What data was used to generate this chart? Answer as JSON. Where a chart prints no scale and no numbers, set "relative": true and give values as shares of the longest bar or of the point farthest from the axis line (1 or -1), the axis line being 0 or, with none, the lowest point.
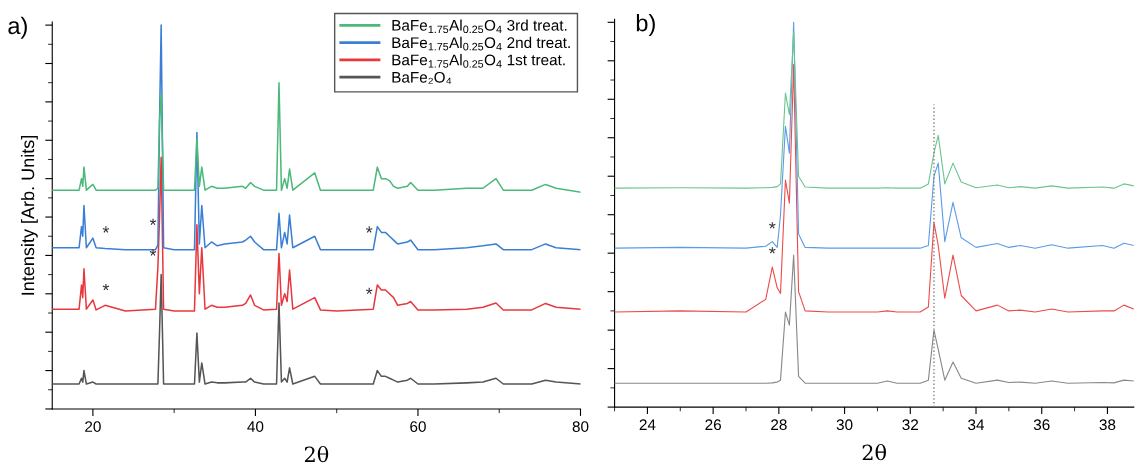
{
  "chart_data": [
    {
      "type": "line",
      "title": "a)",
      "xlabel": "2θ",
      "ylabel": "Intensity [Arb. Units]",
      "relative": true,
      "tick_labels": "x",
      "legend": "top right",
      "grid": false,
      "marker": "none",
      "line_style": "solid",
      "xlim": [
        15,
        80
      ],
      "xticks": [
        20,
        40,
        60,
        80
      ],
      "x": [
        15,
        18.3,
        18.6,
        18.75,
        18.9,
        19.2,
        20.0,
        20.4,
        21.5,
        24,
        27.7,
        28.0,
        28.2,
        28.4,
        28.7,
        30,
        32.5,
        32.8,
        33.1,
        33.4,
        33.8,
        34.6,
        35.3,
        36.2,
        38.4,
        38.8,
        39.4,
        39.9,
        41,
        42.6,
        42.9,
        43.2,
        43.6,
        43.9,
        44.2,
        44.6,
        47.3,
        48,
        50,
        54.5,
        55,
        55.5,
        56,
        56.5,
        57,
        57.5,
        58.7,
        59.1,
        60,
        62,
        66,
        68,
        69.6,
        70.5,
        74,
        75.7,
        77,
        80
      ],
      "series": [
        {
          "name": "BaFe$_{1.75}$Al$_{0.25}$O$_{4}$ 3rd treat.",
          "color": "#4cb87a",
          "values": [
            0.57,
            0.57,
            0.6,
            0.58,
            0.63,
            0.57,
            0.585,
            0.57,
            0.57,
            0.57,
            0.57,
            0.575,
            0.75,
            0.82,
            0.57,
            0.57,
            0.57,
            0.705,
            0.58,
            0.63,
            0.57,
            0.58,
            0.575,
            0.575,
            0.58,
            0.575,
            0.59,
            0.58,
            0.57,
            0.57,
            0.85,
            0.57,
            0.6,
            0.575,
            0.625,
            0.57,
            0.615,
            0.57,
            0.57,
            0.57,
            0.63,
            0.6,
            0.6,
            0.595,
            0.58,
            0.575,
            0.58,
            0.59,
            0.57,
            0.57,
            0.575,
            0.575,
            0.6,
            0.57,
            0.57,
            0.585,
            0.575,
            0.565
          ]
        },
        {
          "name": "BaFe$_{1.75}$Al$_{0.25}$O$_{4}$ 2nd treat.",
          "color": "#3a7fd5",
          "values": [
            0.42,
            0.42,
            0.475,
            0.45,
            0.53,
            0.42,
            0.445,
            0.42,
            0.418,
            0.415,
            0.415,
            0.427,
            0.75,
            1.0,
            0.42,
            0.415,
            0.415,
            0.72,
            0.43,
            0.53,
            0.42,
            0.435,
            0.425,
            0.43,
            0.435,
            0.44,
            0.45,
            0.435,
            0.415,
            0.415,
            0.51,
            0.42,
            0.46,
            0.43,
            0.505,
            0.42,
            0.45,
            0.415,
            0.415,
            0.415,
            0.475,
            0.46,
            0.46,
            0.45,
            0.44,
            0.43,
            0.435,
            0.44,
            0.415,
            0.415,
            0.42,
            0.425,
            0.43,
            0.415,
            0.415,
            0.43,
            0.42,
            0.415
          ]
        },
        {
          "name": "BaFe$_{1.75}$Al$_{0.25}$O$_{4}$ 1st treat.",
          "color": "#e8383d",
          "values": [
            0.26,
            0.26,
            0.323,
            0.29,
            0.365,
            0.26,
            0.284,
            0.258,
            0.27,
            0.255,
            0.26,
            0.37,
            0.5,
            0.656,
            0.26,
            0.255,
            0.255,
            0.48,
            0.3,
            0.42,
            0.26,
            0.27,
            0.265,
            0.265,
            0.27,
            0.275,
            0.297,
            0.27,
            0.258,
            0.26,
            0.405,
            0.27,
            0.3,
            0.28,
            0.362,
            0.26,
            0.29,
            0.258,
            0.255,
            0.26,
            0.323,
            0.31,
            0.31,
            0.3,
            0.29,
            0.27,
            0.275,
            0.28,
            0.258,
            0.258,
            0.26,
            0.265,
            0.276,
            0.258,
            0.258,
            0.275,
            0.265,
            0.26
          ]
        },
        {
          "name": "BaFe₂O₄",
          "color": "#555555",
          "values": [
            0.065,
            0.065,
            0.08,
            0.07,
            0.1,
            0.065,
            0.07,
            0.065,
            0.065,
            0.065,
            0.065,
            0.065,
            0.2,
            0.35,
            0.065,
            0.065,
            0.065,
            0.198,
            0.07,
            0.12,
            0.065,
            0.07,
            0.068,
            0.068,
            0.07,
            0.07,
            0.08,
            0.07,
            0.065,
            0.065,
            0.276,
            0.07,
            0.08,
            0.07,
            0.107,
            0.065,
            0.085,
            0.065,
            0.065,
            0.065,
            0.1,
            0.085,
            0.085,
            0.08,
            0.075,
            0.07,
            0.075,
            0.08,
            0.065,
            0.065,
            0.068,
            0.07,
            0.08,
            0.065,
            0.065,
            0.075,
            0.07,
            0.065
          ]
        }
      ],
      "annotations": [
        {
          "text": "*",
          "x": 21.6,
          "y": 0.43
        },
        {
          "text": "*",
          "x": 27.4,
          "y": 0.45
        },
        {
          "text": "*",
          "x": 54.0,
          "y": 0.43
        },
        {
          "text": "*",
          "x": 21.6,
          "y": 0.28
        },
        {
          "text": "*",
          "x": 27.4,
          "y": 0.37
        },
        {
          "text": "*",
          "x": 54.0,
          "y": 0.27
        }
      ]
    },
    {
      "type": "line",
      "title": "b)",
      "xlabel": "2θ",
      "relative": true,
      "tick_labels": "x",
      "grid": false,
      "marker": "none",
      "line_style": "solid",
      "xlim": [
        23,
        38.8
      ],
      "xticks": [
        24,
        26,
        28,
        30,
        32,
        34,
        36,
        38
      ],
      "x": [
        23,
        25,
        27,
        27.6,
        27.8,
        27.95,
        28.05,
        28.2,
        28.32,
        28.45,
        28.6,
        28.8,
        29.5,
        31,
        31.3,
        31.6,
        32.3,
        32.55,
        32.72,
        32.85,
        33.05,
        33.3,
        33.55,
        34,
        34.65,
        35,
        35.35,
        35.8,
        36.3,
        36.8,
        37.85,
        38.2,
        38.5,
        38.8
      ],
      "series": [
        {
          "color": "#6cc48e",
          "values": [
            0.569,
            0.57,
            0.569,
            0.57,
            0.571,
            0.573,
            0.58,
            0.816,
            0.76,
            0.974,
            0.6,
            0.572,
            0.569,
            0.569,
            0.57,
            0.569,
            0.569,
            0.58,
            0.66,
            0.706,
            0.58,
            0.634,
            0.585,
            0.57,
            0.577,
            0.57,
            0.573,
            0.569,
            0.575,
            0.569,
            0.572,
            0.569,
            0.58,
            0.575
          ]
        },
        {
          "color": "#5b9be8",
          "values": [
            0.413,
            0.415,
            0.413,
            0.418,
            0.43,
            0.415,
            0.5,
            0.73,
            0.66,
            1.0,
            0.45,
            0.415,
            0.413,
            0.413,
            0.413,
            0.413,
            0.413,
            0.42,
            0.6,
            0.634,
            0.43,
            0.532,
            0.44,
            0.415,
            0.425,
            0.415,
            0.42,
            0.413,
            0.422,
            0.413,
            0.42,
            0.413,
            0.426,
            0.42
          ]
        },
        {
          "color": "#ec4b4b",
          "values": [
            0.247,
            0.25,
            0.247,
            0.28,
            0.364,
            0.31,
            0.295,
            0.59,
            0.53,
            0.89,
            0.3,
            0.25,
            0.247,
            0.247,
            0.25,
            0.247,
            0.247,
            0.26,
            0.48,
            0.42,
            0.283,
            0.395,
            0.29,
            0.25,
            0.265,
            0.25,
            0.252,
            0.247,
            0.255,
            0.247,
            0.25,
            0.25,
            0.265,
            0.255
          ]
        },
        {
          "color": "#888888",
          "values": [
            0.062,
            0.062,
            0.062,
            0.062,
            0.063,
            0.065,
            0.07,
            0.247,
            0.213,
            0.395,
            0.08,
            0.062,
            0.062,
            0.062,
            0.068,
            0.062,
            0.062,
            0.07,
            0.2,
            0.15,
            0.07,
            0.117,
            0.075,
            0.062,
            0.07,
            0.064,
            0.065,
            0.062,
            0.068,
            0.062,
            0.064,
            0.063,
            0.07,
            0.068
          ]
        }
      ],
      "ref_lines": [
        {
          "axis": "x",
          "value": 32.72,
          "color": "#808080",
          "line_style": "dotted"
        }
      ],
      "annotations": [
        {
          "text": "*",
          "x": 27.8,
          "y": 0.435
        },
        {
          "text": "*",
          "x": 27.8,
          "y": 0.37
        }
      ]
    }
  ]
}
